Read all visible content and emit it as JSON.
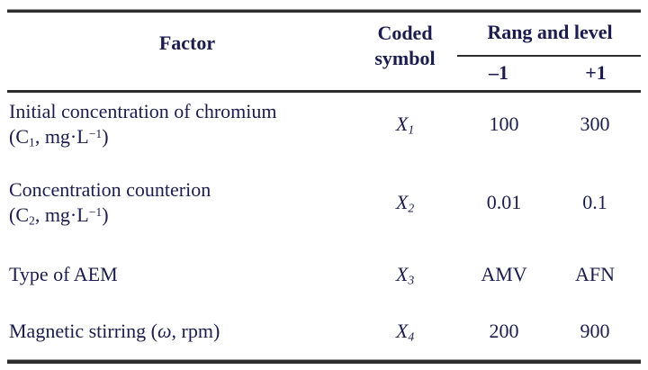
{
  "header": {
    "factor": "Factor",
    "coded_line1": "Coded",
    "coded_line2": "symbol",
    "range_group": "Rang and level",
    "low": "–1",
    "high": "+1"
  },
  "rows": [
    {
      "factor_line1": "Initial concentration of chromium",
      "factor_line2_prefix": "(C",
      "factor_line2_sub": "1",
      "factor_line2_mid": ", mg·L",
      "factor_line2_sup": "−1",
      "factor_line2_suffix": ")",
      "symbol_base": "X",
      "symbol_sub": "1",
      "low": "100",
      "high": "300"
    },
    {
      "factor_line1": "Concentration counterion",
      "factor_line2_prefix": "(C",
      "factor_line2_sub": "2",
      "factor_line2_mid": ", mg·L",
      "factor_line2_sup": "−1",
      "factor_line2_suffix": ")",
      "symbol_base": "X",
      "symbol_sub": "2",
      "low": "0.01",
      "high": "0.1"
    },
    {
      "factor_line1": "Type of AEM",
      "symbol_base": "X",
      "symbol_sub": "3",
      "low": "AMV",
      "high": "AFN"
    },
    {
      "factor_line1": "Magnetic stirring (",
      "factor_omega": "ω",
      "factor_line1_suffix": ", rpm)",
      "symbol_base": "X",
      "symbol_sub": "4",
      "low": "200",
      "high": "900"
    }
  ],
  "colors": {
    "text": "#1c1c4f",
    "rule": "#2d2d2d",
    "background": "#ffffff"
  }
}
